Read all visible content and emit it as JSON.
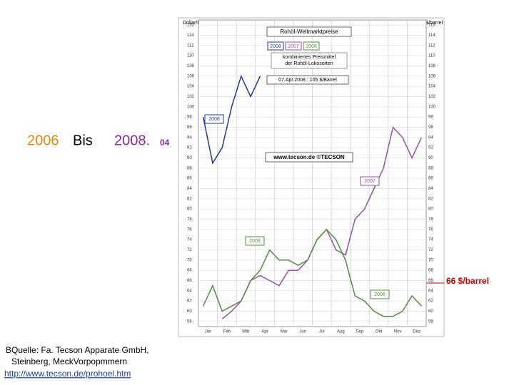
{
  "slide": {
    "heading": {
      "start": "2006",
      "middle": "Bis",
      "end": "2008.",
      "suffix": "04"
    },
    "price_note": "66 $/barrel",
    "source": [
      "BQuelle: Fa. Tecson Apparate GmbH,",
      "Steinberg, MeckVorpopmmern",
      "http://www.tecson.de/prohoel.htm"
    ]
  },
  "chart_data": {
    "type": "line",
    "title": "Rohöl-Weltmarktpreise",
    "y_label_left": "Dollar/Barrel",
    "y_label_right": "US $/barrel",
    "subtitle": [
      "kombiniertes Preismittel",
      "der Rohöl-Lokosorten"
    ],
    "annotation": "07.Apr.2008 : 105 $/Barrel",
    "credit": "www.tecson.de ©TECSON",
    "categories": [
      "Jan",
      null,
      "Feb",
      null,
      "Mär",
      null,
      "Apr",
      null,
      "Mai",
      null,
      "Jun",
      null,
      "Jul",
      null,
      "Aug",
      null,
      "Sep",
      null,
      "Okt",
      null,
      "Nov",
      null,
      "Dez",
      null
    ],
    "series": [
      {
        "name": "2008",
        "color": "#1f3a9a",
        "values": [
          98,
          89,
          92,
          100,
          106,
          102,
          106,
          null,
          null,
          null,
          null,
          null,
          null,
          null,
          null,
          null,
          null,
          null,
          null,
          null,
          null,
          null,
          null,
          null
        ]
      },
      {
        "name": "2007",
        "color": "#9a4fa6",
        "values": [
          null,
          null,
          58.5,
          60,
          62,
          66,
          67,
          66,
          65,
          68,
          68,
          70,
          74,
          76,
          72,
          71,
          78,
          80,
          84,
          88,
          96,
          94,
          90,
          94
        ]
      },
      {
        "name": "2006",
        "color": "#4f8f3f",
        "values": [
          61,
          65,
          60,
          61,
          62,
          66,
          68,
          72,
          70,
          70,
          69,
          70,
          74,
          76,
          74,
          70,
          63,
          62,
          60,
          59,
          59,
          60,
          63,
          61
        ]
      }
    ],
    "series_labels": [
      "2008",
      "2007",
      "2006",
      "2006"
    ],
    "ylim": [
      57,
      117
    ],
    "yticks": [
      58,
      60,
      62,
      64,
      66,
      68,
      70,
      72,
      74,
      76,
      78,
      80,
      82,
      84,
      86,
      88,
      90,
      92,
      94,
      96,
      98,
      100,
      102,
      104,
      106,
      108,
      110,
      112,
      114,
      116
    ],
    "grid": true
  }
}
